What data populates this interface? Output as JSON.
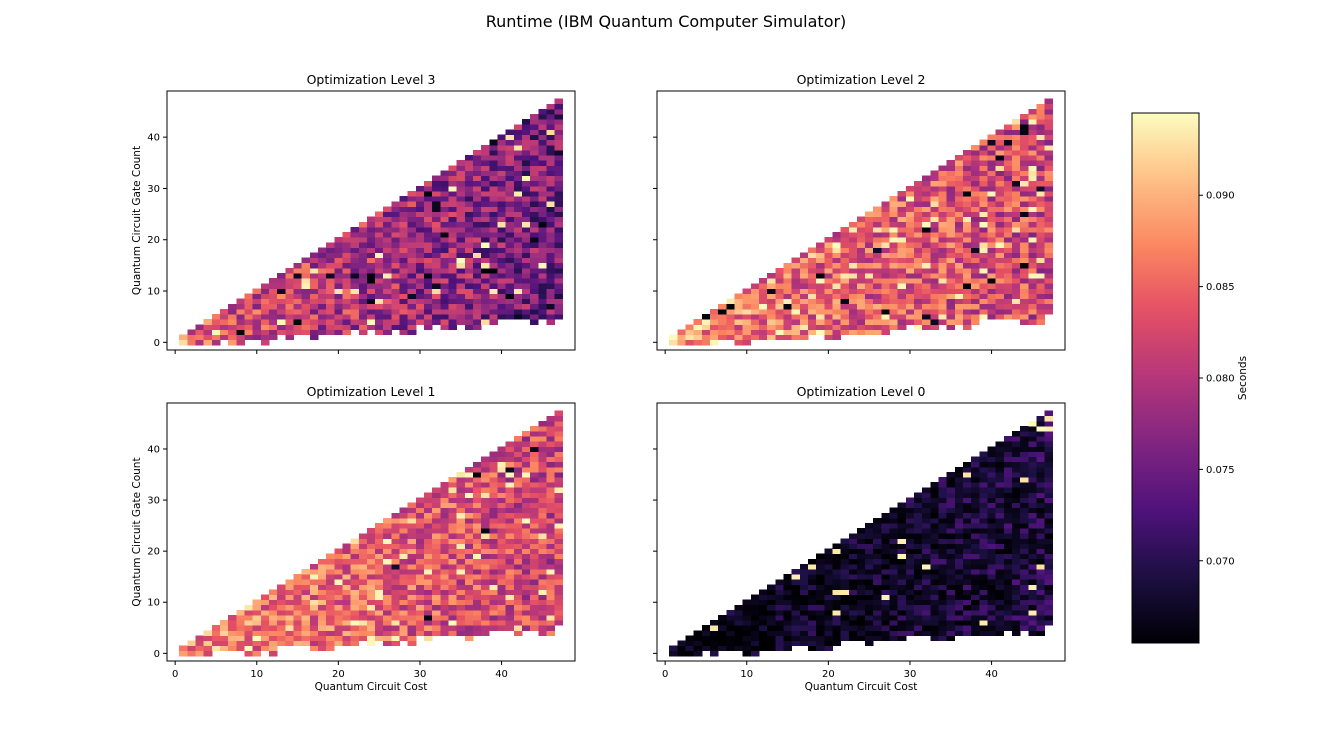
{
  "figure": {
    "title": "Runtime (IBM Quantum Computer Simulator)",
    "colormap": "magma",
    "background": "#ffffff"
  },
  "chart_data": [
    {
      "type": "heatmap",
      "title": "Optimization Level 3",
      "xlabel": "",
      "ylabel": "Quantum Circuit Gate Count",
      "xlim": [
        -1,
        49
      ],
      "ylim": [
        -1.5,
        49
      ],
      "xticks": [
        "0",
        "10",
        "20",
        "30",
        "40"
      ],
      "yticks": [
        "0",
        "10",
        "20",
        "30",
        "40"
      ],
      "show_xtick_labels": false,
      "show_ytick_labels": true,
      "grid": false,
      "x_range": [
        1,
        47
      ],
      "base_value": 0.0795,
      "gradient": -0.0002,
      "noise": 0.006,
      "hot_fraction": 0.03,
      "dark_fraction": 0.03,
      "seed": 3
    },
    {
      "type": "heatmap",
      "title": "Optimization Level 2",
      "xlabel": "",
      "ylabel": "",
      "xlim": [
        -1,
        49
      ],
      "ylim": [
        -1.5,
        49
      ],
      "xticks": [
        "0",
        "10",
        "20",
        "30",
        "40"
      ],
      "yticks": [
        "0",
        "10",
        "20",
        "30",
        "40"
      ],
      "show_xtick_labels": false,
      "show_ytick_labels": false,
      "grid": false,
      "x_range": [
        1,
        47
      ],
      "base_value": 0.0845,
      "gradient": -0.0001,
      "noise": 0.006,
      "hot_fraction": 0.06,
      "dark_fraction": 0.02,
      "seed": 2
    },
    {
      "type": "heatmap",
      "title": "Optimization Level 1",
      "xlabel": "Quantum Circuit Cost",
      "ylabel": "Quantum Circuit Gate Count",
      "xlim": [
        -1,
        49
      ],
      "ylim": [
        -1.5,
        49
      ],
      "xticks": [
        "0",
        "10",
        "20",
        "30",
        "40"
      ],
      "yticks": [
        "0",
        "10",
        "20",
        "30",
        "40"
      ],
      "show_xtick_labels": true,
      "show_ytick_labels": true,
      "grid": false,
      "x_range": [
        1,
        47
      ],
      "base_value": 0.0845,
      "gradient": -0.00012,
      "noise": 0.0055,
      "hot_fraction": 0.06,
      "dark_fraction": 0.01,
      "seed": 1
    },
    {
      "type": "heatmap",
      "title": "Optimization Level 0",
      "xlabel": "Quantum Circuit Cost",
      "ylabel": "",
      "xlim": [
        -1,
        49
      ],
      "ylim": [
        -1.5,
        49
      ],
      "xticks": [
        "0",
        "10",
        "20",
        "30",
        "40"
      ],
      "yticks": [
        "0",
        "10",
        "20",
        "30",
        "40"
      ],
      "show_xtick_labels": true,
      "show_ytick_labels": false,
      "grid": false,
      "x_range": [
        1,
        47
      ],
      "base_value": 0.068,
      "gradient": 8e-05,
      "noise": 0.0035,
      "hot_fraction": 0.025,
      "dark_fraction": 0.25,
      "seed": 7
    }
  ],
  "colorbar": {
    "label": "Seconds",
    "vmin": 0.0655,
    "vmax": 0.0945,
    "ticks": [
      {
        "value": 0.07,
        "label": "0.070"
      },
      {
        "value": 0.075,
        "label": "0.075"
      },
      {
        "value": 0.08,
        "label": "0.080"
      },
      {
        "value": 0.085,
        "label": "0.085"
      },
      {
        "value": 0.09,
        "label": "0.090"
      }
    ]
  }
}
